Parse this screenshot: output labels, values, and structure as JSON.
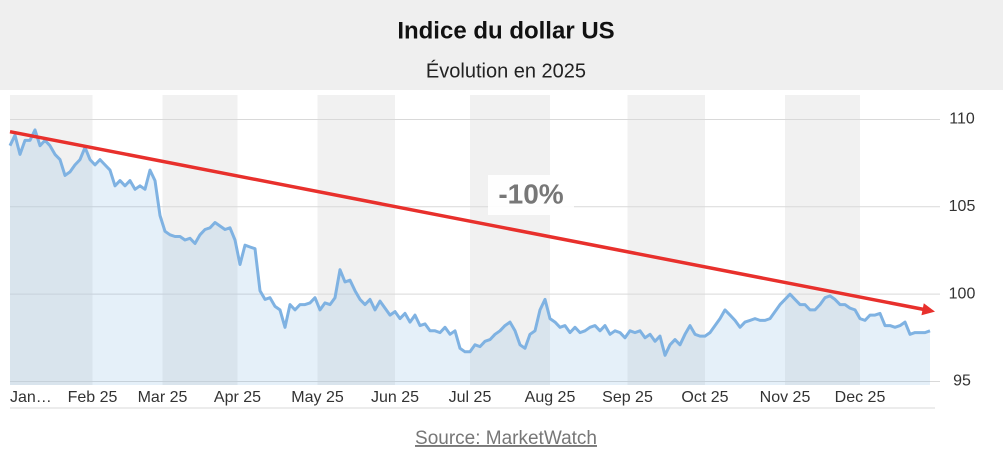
{
  "chart_data": {
    "type": "line",
    "title": "Indice du dollar US",
    "subtitle": "Évolution en 2025",
    "source": "Source: MarketWatch",
    "x": [
      0,
      2,
      4,
      6,
      8,
      10,
      12,
      14,
      16,
      18,
      20,
      22,
      24,
      26,
      28,
      30,
      32,
      34,
      36,
      38,
      40,
      42,
      44,
      46,
      48,
      50,
      52,
      54,
      56,
      58,
      60,
      62,
      64,
      66,
      68,
      70,
      72,
      74,
      76,
      78,
      80,
      82,
      84,
      86,
      88,
      90,
      92,
      94,
      96,
      98,
      100,
      102,
      104,
      106,
      108,
      110,
      112,
      114,
      116,
      118,
      120,
      122,
      124,
      126,
      128,
      130,
      132,
      134,
      136,
      138,
      140,
      142,
      144,
      146,
      148,
      150,
      152,
      154,
      156,
      158,
      160,
      162,
      164,
      166,
      168,
      170,
      172,
      174,
      176,
      178,
      180,
      182,
      184,
      186,
      188,
      190,
      192,
      194,
      196,
      198,
      200,
      202,
      204,
      206,
      208,
      210,
      212,
      214,
      216,
      218,
      220,
      222,
      224,
      226,
      228,
      230,
      232,
      234,
      236,
      238,
      240,
      242,
      244,
      246,
      248,
      250,
      252,
      254,
      256,
      258,
      260,
      262,
      264,
      266,
      268,
      270,
      272,
      274,
      276,
      278,
      280,
      282,
      284,
      286,
      288,
      290,
      292,
      294,
      296,
      298,
      300,
      302,
      304,
      306,
      308,
      310,
      312,
      314,
      316,
      318,
      320,
      322,
      324,
      326,
      328,
      330,
      332,
      334,
      336,
      338,
      340,
      342,
      344,
      346,
      348,
      350,
      352,
      354,
      356,
      358,
      360,
      362,
      364,
      366,
      368
    ],
    "series": [
      {
        "name": "Indice du dollar US",
        "color": "#7fb2e2",
        "values": [
          108.5,
          109.1,
          108.0,
          108.8,
          108.8,
          109.4,
          108.5,
          108.8,
          108.5,
          108.0,
          107.7,
          106.8,
          107.0,
          107.4,
          107.7,
          108.4,
          107.7,
          107.4,
          107.7,
          107.4,
          107.1,
          106.2,
          106.5,
          106.2,
          106.5,
          106.0,
          106.2,
          106.0,
          107.1,
          106.5,
          104.5,
          103.6,
          103.4,
          103.3,
          103.3,
          103.1,
          103.2,
          102.9,
          103.4,
          103.7,
          103.8,
          104.1,
          103.9,
          103.7,
          103.8,
          103.1,
          101.7,
          102.8,
          102.7,
          102.6,
          100.2,
          99.7,
          99.8,
          99.3,
          99.1,
          98.1,
          99.4,
          99.1,
          99.4,
          99.4,
          99.5,
          99.8,
          99.1,
          99.5,
          99.4,
          99.8,
          101.4,
          100.7,
          100.8,
          100.2,
          99.7,
          99.4,
          99.7,
          99.1,
          99.6,
          99.2,
          98.8,
          99.0,
          98.6,
          98.9,
          98.4,
          98.8,
          98.2,
          98.3,
          97.9,
          97.9,
          97.8,
          98.1,
          97.7,
          97.9,
          96.9,
          96.7,
          96.7,
          97.1,
          97.0,
          97.3,
          97.4,
          97.7,
          97.9,
          98.2,
          98.4,
          97.9,
          97.1,
          96.9,
          97.7,
          97.9,
          99.1,
          99.7,
          98.6,
          98.4,
          98.1,
          98.2,
          97.8,
          98.1,
          97.8,
          97.9,
          98.1,
          98.2,
          97.9,
          98.2,
          97.7,
          97.9,
          97.8,
          97.5,
          97.9,
          97.8,
          97.9,
          97.5,
          97.7,
          97.3,
          97.6,
          96.5,
          97.1,
          97.4,
          97.1,
          97.7,
          98.2,
          97.7,
          97.6,
          97.6,
          97.8,
          98.2,
          98.6,
          99.1,
          98.8,
          98.5,
          98.1,
          98.4,
          98.5,
          98.6,
          98.5,
          98.5,
          98.6,
          99.0,
          99.4,
          99.7,
          100.0,
          99.7,
          99.4,
          99.4,
          99.1,
          99.1,
          99.4,
          99.8,
          99.9,
          99.7,
          99.4,
          99.4,
          99.2,
          99.1,
          98.6,
          98.5,
          98.8,
          98.8,
          98.9,
          98.2,
          98.2,
          98.1,
          98.2,
          98.4,
          97.7,
          97.8,
          97.8,
          97.8,
          97.9
        ]
      }
    ],
    "xlim": [
      0,
      370
    ],
    "xticks": [
      {
        "value": 0,
        "label": "Jan…"
      },
      {
        "value": 33,
        "label": "Feb 25"
      },
      {
        "value": 61,
        "label": "Mar 25"
      },
      {
        "value": 91,
        "label": "Apr 25"
      },
      {
        "value": 123,
        "label": "May 25"
      },
      {
        "value": 154,
        "label": "Jun 25"
      },
      {
        "value": 184,
        "label": "Jul 25"
      },
      {
        "value": 216,
        "label": "Aug 25"
      },
      {
        "value": 247,
        "label": "Sep 25"
      },
      {
        "value": 278,
        "label": "Oct 25"
      },
      {
        "value": 310,
        "label": "Nov 25"
      },
      {
        "value": 340,
        "label": "Dec 25"
      }
    ],
    "ylim": [
      94.8,
      111.4
    ],
    "yticks": [
      95,
      100,
      105,
      110
    ],
    "grid": true,
    "annotation": {
      "label": "-10%",
      "from": [
        0,
        109.3
      ],
      "to": [
        370,
        99.0
      ],
      "color": "#e8302c"
    }
  }
}
